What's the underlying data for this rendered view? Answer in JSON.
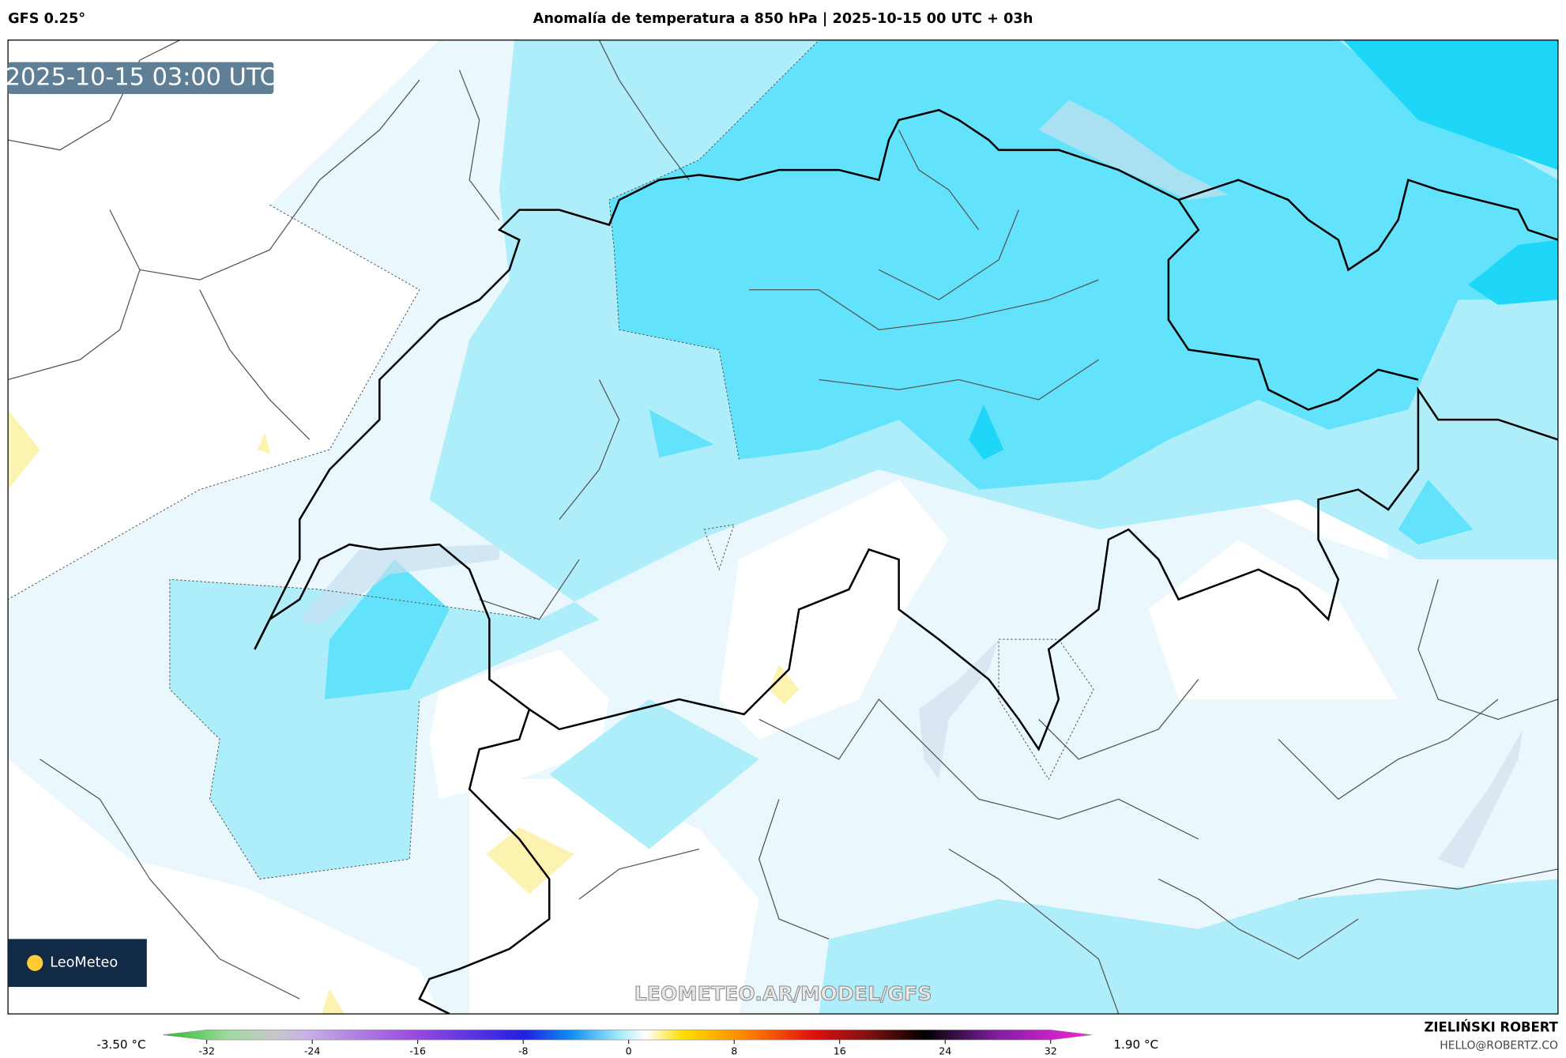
{
  "header": {
    "model": "GFS 0.25°",
    "title": "Anomalía de temperatura a 850 hPa | 2025-10-15 00 UTC + 03h"
  },
  "map": {
    "timestamp": "2025-10-15 03:00 UTC",
    "logo": "LeoMeteo",
    "watermark": "LEOMETEO.AR/MODEL/GFS"
  },
  "colorbar": {
    "min_label": "-3.50 °C",
    "max_label": "1.90 °C",
    "lim": [
      -32,
      32
    ],
    "ticks": [
      -32,
      -24,
      -16,
      -8,
      0,
      8,
      16,
      24,
      32
    ]
  },
  "footer": {
    "author": "ZIELIŃSKI ROBERT",
    "email": "HELLO@ROBERTZ.CO"
  }
}
